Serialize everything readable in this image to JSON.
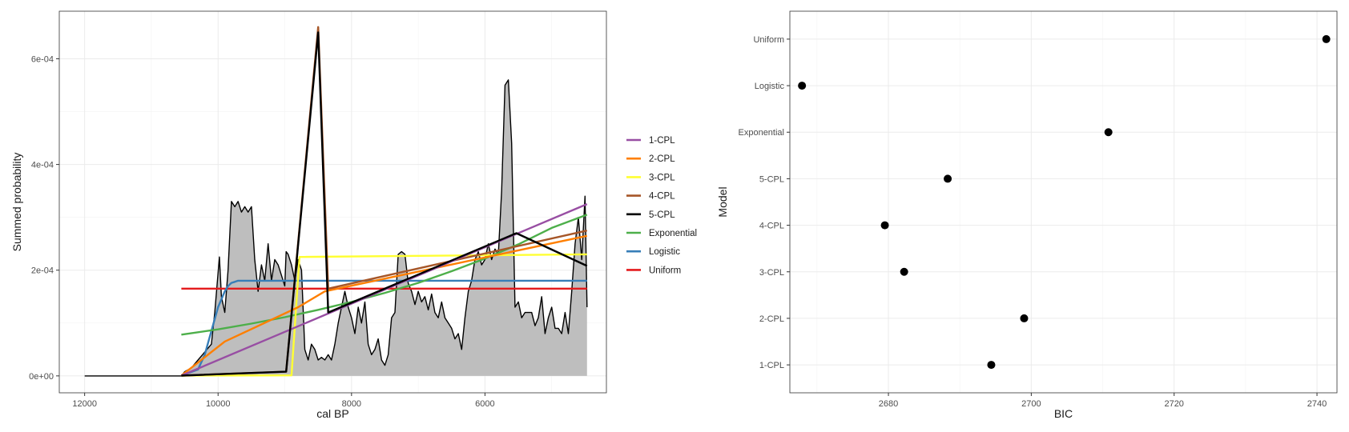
{
  "chart_data": [
    {
      "type": "line",
      "xlabel": "cal BP",
      "ylabel": "Summed probability",
      "x_reversed": true,
      "xlim": [
        12380,
        4180
      ],
      "ylim": [
        -3.2e-05,
        0.00069
      ],
      "x_ticks": [
        12000,
        10000,
        8000,
        6000
      ],
      "x_tick_labels": [
        "12000",
        "10000",
        "8000",
        "6000"
      ],
      "y_ticks": [
        0,
        0.0002,
        0.0004,
        0.0006
      ],
      "y_tick_labels": [
        "0e+00",
        "2e-04",
        "4e-04",
        "6e-04"
      ],
      "grid": true,
      "legend_position": "right",
      "spd": {
        "name": "",
        "fill": "#bebebe",
        "x": [
          12000,
          10550,
          10500,
          10400,
          10300,
          10200,
          10100,
          10050,
          9980,
          9950,
          9900,
          9850,
          9800,
          9750,
          9700,
          9650,
          9600,
          9550,
          9500,
          9450,
          9400,
          9350,
          9300,
          9250,
          9200,
          9150,
          9100,
          9050,
          9000,
          8980,
          8950,
          8900,
          8850,
          8800,
          8750,
          8700,
          8650,
          8600,
          8550,
          8500,
          8450,
          8400,
          8350,
          8300,
          8250,
          8200,
          8150,
          8100,
          8050,
          8000,
          7950,
          7900,
          7850,
          7800,
          7750,
          7700,
          7650,
          7600,
          7550,
          7500,
          7450,
          7400,
          7350,
          7300,
          7250,
          7200,
          7150,
          7100,
          7050,
          7000,
          6950,
          6900,
          6850,
          6800,
          6750,
          6700,
          6650,
          6600,
          6550,
          6500,
          6450,
          6400,
          6350,
          6300,
          6250,
          6200,
          6150,
          6100,
          6050,
          6000,
          5950,
          5900,
          5850,
          5800,
          5750,
          5700,
          5650,
          5600,
          5550,
          5500,
          5450,
          5400,
          5350,
          5300,
          5250,
          5200,
          5150,
          5100,
          5050,
          5000,
          4950,
          4900,
          4850,
          4800,
          4750,
          4700,
          4650,
          4600,
          4550,
          4500,
          4470
        ],
        "values": [
          0,
          0,
          8e-06,
          1.5e-05,
          3e-05,
          4.5e-05,
          6e-05,
          0.00012,
          0.000225,
          0.00015,
          0.00012,
          0.0002,
          0.00033,
          0.00032,
          0.00033,
          0.00031,
          0.00032,
          0.00031,
          0.00032,
          0.00022,
          0.00016,
          0.00021,
          0.00018,
          0.00025,
          0.00018,
          0.00022,
          0.00021,
          0.00019,
          0.00017,
          0.000235,
          0.00023,
          0.00021,
          0.00018,
          0.00022,
          0.0002,
          5e-05,
          3e-05,
          6e-05,
          5e-05,
          3e-05,
          3.5e-05,
          3e-05,
          4e-05,
          3e-05,
          6e-05,
          0.0001,
          0.00013,
          0.00016,
          0.00013,
          0.00011,
          8e-05,
          0.00013,
          0.0001,
          0.00014,
          6e-05,
          4e-05,
          5e-05,
          7e-05,
          3e-05,
          2e-05,
          4e-05,
          0.00011,
          0.00012,
          0.00023,
          0.000235,
          0.00023,
          0.000175,
          0.00016,
          0.000135,
          0.00016,
          0.00014,
          0.00015,
          0.000125,
          0.000155,
          0.00012,
          0.00011,
          0.00014,
          0.00011,
          0.0001,
          9e-05,
          7e-05,
          8e-05,
          5e-05,
          0.00011,
          0.00016,
          0.00018,
          0.00022,
          0.000235,
          0.00021,
          0.00022,
          0.00025,
          0.00022,
          0.00024,
          0.00023,
          0.00035,
          0.00055,
          0.00056,
          0.00044,
          0.00013,
          0.00014,
          0.00011,
          0.00012,
          0.00012,
          0.00012,
          9.5e-05,
          0.00011,
          0.00015,
          8e-05,
          0.00011,
          0.00013,
          9e-05,
          9e-05,
          8e-05,
          0.00012,
          8e-05,
          0.00016,
          0.00025,
          0.0003,
          0.00022,
          0.00034,
          0.00013
        ]
      },
      "series": [
        {
          "name": "1-CPL",
          "color": "#984ea3",
          "x": [
            10550,
            4470
          ],
          "values": [
            5e-07,
            0.000325
          ]
        },
        {
          "name": "2-CPL",
          "color": "#ff7f00",
          "x": [
            10550,
            9900,
            8800,
            8400,
            4470
          ],
          "values": [
            5e-07,
            6.5e-05,
            0.00013,
            0.00016,
            0.000265
          ]
        },
        {
          "name": "3-CPL",
          "color": "#ffff33",
          "x": [
            10550,
            8900,
            8780,
            4470
          ],
          "values": [
            5e-07,
            1e-06,
            0.000225,
            0.00023
          ]
        },
        {
          "name": "4-CPL",
          "color": "#a65628",
          "x": [
            10550,
            8980,
            8500,
            8350,
            4470
          ],
          "values": [
            5e-07,
            8e-06,
            0.00066,
            0.000165,
            0.000275
          ]
        },
        {
          "name": "5-CPL",
          "color": "#000000",
          "x": [
            10550,
            8980,
            8500,
            8350,
            5530,
            4470
          ],
          "values": [
            5e-07,
            8e-06,
            0.00065,
            0.00012,
            0.00027,
            0.000208
          ]
        },
        {
          "name": "Exponential",
          "color": "#4daf4a",
          "x": [
            10550,
            10000,
            9500,
            9000,
            8500,
            8000,
            7500,
            7000,
            6500,
            6000,
            5500,
            5000,
            4470
          ],
          "values": [
            7.8e-05,
            8.8e-05,
            9.9e-05,
            0.000111,
            0.000125,
            0.00014,
            0.000157,
            0.000176,
            0.000198,
            0.000222,
            0.000249,
            0.00028,
            0.000305
          ]
        },
        {
          "name": "Logistic",
          "color": "#377eb8",
          "x": [
            10550,
            10300,
            10200,
            10100,
            10000,
            9900,
            9850,
            9800,
            9750,
            9700,
            9600,
            9500,
            9000,
            8000,
            6000,
            4470
          ],
          "values": [
            5e-07,
            1.2e-05,
            4e-05,
            8.5e-05,
            0.00013,
            0.00016,
            0.00017,
            0.000176,
            0.000178,
            0.00018,
            0.00018,
            0.00018,
            0.00018,
            0.00018,
            0.00018,
            0.00018
          ]
        },
        {
          "name": "Uniform",
          "color": "#e41a1c",
          "x": [
            10550,
            4470
          ],
          "values": [
            0.000165,
            0.000165
          ]
        }
      ]
    },
    {
      "type": "scatter",
      "xlabel": "BIC",
      "ylabel": "Model",
      "xlim": [
        2666.2,
        2742.8
      ],
      "x_ticks": [
        2680,
        2700,
        2720,
        2740
      ],
      "x_tick_labels": [
        "2680",
        "2700",
        "2720",
        "2740"
      ],
      "grid": true,
      "categories": [
        "1-CPL",
        "2-CPL",
        "3-CPL",
        "4-CPL",
        "5-CPL",
        "Exponential",
        "Logistic",
        "Uniform"
      ],
      "values": [
        2694.4,
        2699.0,
        2682.2,
        2679.5,
        2688.3,
        2710.8,
        2667.9,
        2741.3
      ]
    }
  ]
}
